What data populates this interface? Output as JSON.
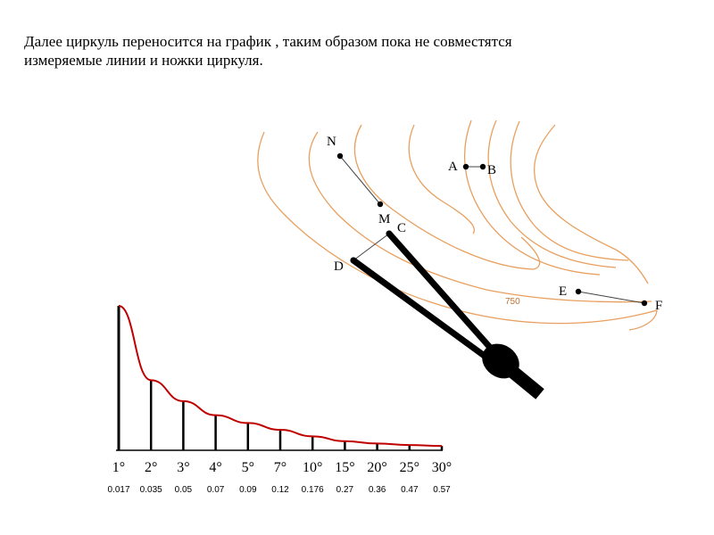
{
  "caption": {
    "line1": "Далее циркуль переносится на график , таким образом пока не совместятся",
    "line2": "измеряемые линии и ножки циркуля."
  },
  "map": {
    "elevation_label": "750",
    "points": {
      "N": "N",
      "M": "M",
      "A": "A",
      "B": "B",
      "C": "C",
      "D": "D",
      "E": "E",
      "F": "F"
    }
  },
  "graph": {
    "degree_labels": [
      "1°",
      "2°",
      "3°",
      "4°",
      "5°",
      "7°",
      "10°",
      "15°",
      "20°",
      "25°",
      "30°"
    ],
    "slope_labels": [
      "0.017",
      "0.035",
      "0.05",
      "0.07",
      "0.09",
      "0.12",
      "0.176",
      "0.27",
      "0.36",
      "0.47",
      "0.57"
    ]
  },
  "colors": {
    "curve": "#c00000",
    "contour": "#e8a060",
    "compass": "#000000"
  }
}
